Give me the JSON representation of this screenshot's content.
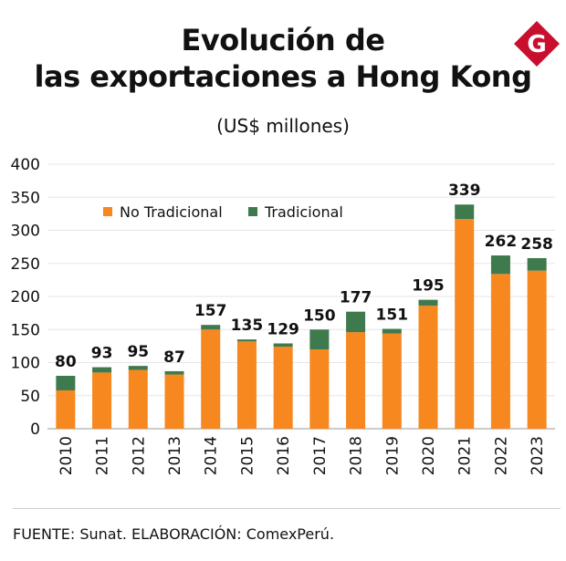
{
  "title_line1": "Evolución de",
  "title_line2": "las exportaciones a Hong Kong",
  "subtitle": "(US$ millones)",
  "logo_letter": "G",
  "footer": "FUENTE: Sunat. ELABORACIÓN: ComexPerú.",
  "colors": {
    "no_tradicional": "#f7871f",
    "tradicional": "#3e7a4d",
    "logo": "#c8102e",
    "grid": "#e6e6e6"
  },
  "chart_data": {
    "type": "bar",
    "stacked": true,
    "title": "Evolución de las exportaciones a Hong Kong",
    "ylabel": "(US$ millones)",
    "xlabel": "",
    "ylim": [
      0,
      400
    ],
    "yticks": [
      0,
      50,
      100,
      150,
      200,
      250,
      300,
      350,
      400
    ],
    "legend_position": "top-left",
    "categories": [
      "2010",
      "2011",
      "2012",
      "2013",
      "2014",
      "2015",
      "2016",
      "2017",
      "2018",
      "2019",
      "2020",
      "2021",
      "2022",
      "2023"
    ],
    "series": [
      {
        "name": "No Tradicional",
        "values": [
          58,
          85,
          89,
          82,
          150,
          132,
          124,
          120,
          146,
          144,
          186,
          317,
          234,
          239
        ]
      },
      {
        "name": "Tradicional",
        "values": [
          22,
          8,
          6,
          5,
          7,
          3,
          5,
          30,
          31,
          7,
          9,
          22,
          28,
          19
        ]
      }
    ],
    "totals": [
      "80",
      "93",
      "95",
      "87",
      "157",
      "135",
      "129",
      "150",
      "177",
      "151",
      "195",
      "339",
      "262",
      "258"
    ]
  }
}
